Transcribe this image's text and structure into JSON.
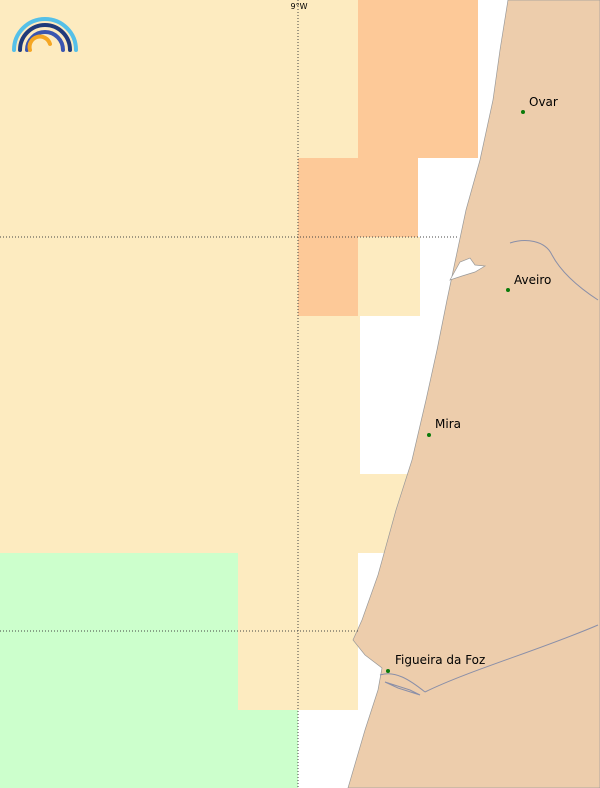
{
  "map": {
    "graticule": {
      "longitude_label": "9°W"
    },
    "places": [
      {
        "name": "Ovar"
      },
      {
        "name": "Aveiro"
      },
      {
        "name": "Mira"
      },
      {
        "name": "Figueira da Foz"
      }
    ]
  }
}
